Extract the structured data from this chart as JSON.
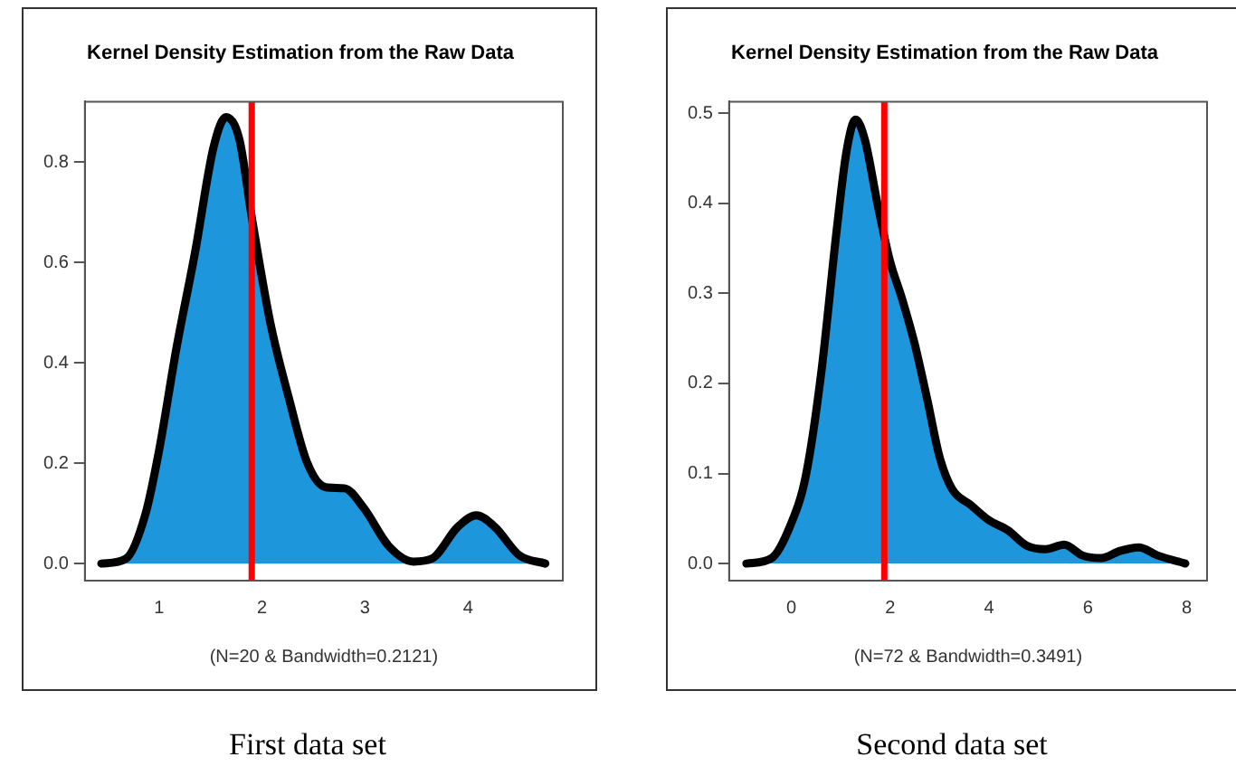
{
  "chart_data": [
    {
      "type": "area",
      "title": "Kernel Density Estimation from the Raw Data",
      "xlabel": "(N=20 & Bandwidth=0.2121)",
      "color": "#1e96dc",
      "x": [
        0.44,
        0.68,
        0.87,
        1.0,
        1.17,
        1.35,
        1.53,
        1.65,
        1.78,
        1.9,
        2.08,
        2.26,
        2.44,
        2.62,
        2.8,
        2.99,
        3.23,
        3.47,
        3.65,
        3.9,
        4.08,
        4.26,
        4.5,
        4.75
      ],
      "values": [
        0,
        0.01,
        0.1,
        0.225,
        0.43,
        0.62,
        0.83,
        0.889,
        0.845,
        0.69,
        0.48,
        0.33,
        0.2,
        0.152,
        0.15,
        0.11,
        0.035,
        0.004,
        0.01,
        0.073,
        0.096,
        0.073,
        0.016,
        0
      ],
      "xlim": [
        0.28,
        4.92
      ],
      "xticks": [
        1,
        2,
        3,
        4
      ],
      "ylim": [
        -0.034,
        0.92
      ],
      "yticks": [
        {
          "value": 0,
          "label": "0.0"
        },
        0.2,
        0.4,
        0.6,
        0.8
      ],
      "ref_lines": [
        {
          "axis": "x",
          "value": 1.9,
          "color": "#ff0000"
        }
      ],
      "annotations": [
        "First data set"
      ]
    },
    {
      "type": "area",
      "title": "Kernel Density Estimation from the Raw Data",
      "xlabel": "(N=72 & Bandwidth=0.3491)",
      "color": "#1e96dc",
      "x": [
        -0.91,
        -0.4,
        -0.03,
        0.29,
        0.6,
        0.92,
        1.11,
        1.3,
        1.49,
        1.74,
        1.99,
        2.24,
        2.49,
        2.75,
        3.0,
        3.25,
        3.63,
        4.0,
        4.38,
        4.76,
        5.14,
        5.52,
        5.89,
        6.27,
        6.65,
        7.03,
        7.41,
        7.97
      ],
      "values": [
        0,
        0.006,
        0.041,
        0.097,
        0.21,
        0.372,
        0.456,
        0.493,
        0.47,
        0.4,
        0.337,
        0.294,
        0.245,
        0.182,
        0.118,
        0.083,
        0.065,
        0.048,
        0.037,
        0.02,
        0.016,
        0.021,
        0.009,
        0.006,
        0.014,
        0.018,
        0.009,
        0
      ],
      "xlim": [
        -1.26,
        8.41
      ],
      "xticks": [
        0,
        2,
        4,
        6,
        8
      ],
      "ylim": [
        -0.019,
        0.513
      ],
      "yticks": [
        {
          "value": 0,
          "label": "0.0"
        },
        0.1,
        0.2,
        0.3,
        0.4,
        0.5
      ],
      "ref_lines": [
        {
          "axis": "x",
          "value": 1.88,
          "color": "#ff0000"
        }
      ],
      "annotations": [
        "Second data set"
      ]
    }
  ]
}
